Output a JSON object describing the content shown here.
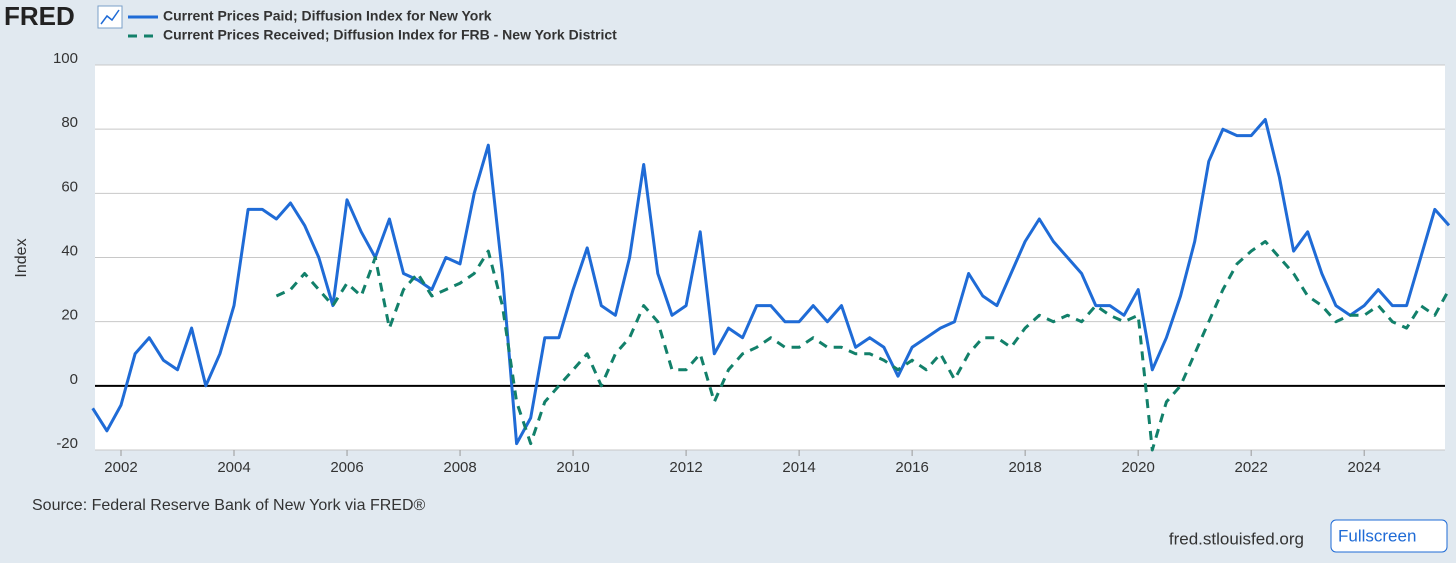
{
  "page": {
    "logo": "FRED",
    "site": "fred.stlouisfed.org",
    "button": "Fullscreen"
  },
  "chart_data": {
    "type": "line",
    "y_label": "Index",
    "source": "Source: Federal Reserve Bank of New York via FRED®",
    "xlim": [
      2001.54,
      2025.43
    ],
    "xticks": [
      2002,
      2004,
      2006,
      2008,
      2010,
      2012,
      2014,
      2016,
      2018,
      2020,
      2022,
      2024
    ],
    "ylim": [
      -20,
      100
    ],
    "yticks": [
      -20,
      0,
      20,
      40,
      60,
      80,
      100
    ],
    "grid": true,
    "series": [
      {
        "name": "Current Prices Paid; Diffusion Index for New York",
        "color": "#1f6bd6",
        "dashed": false,
        "x": [
          2001.5,
          2001.75,
          2002,
          2002.25,
          2002.5,
          2002.75,
          2003,
          2003.25,
          2003.5,
          2003.75,
          2004,
          2004.25,
          2004.5,
          2004.75,
          2005,
          2005.25,
          2005.5,
          2005.75,
          2006,
          2006.25,
          2006.5,
          2006.75,
          2007,
          2007.25,
          2007.5,
          2007.75,
          2008,
          2008.25,
          2008.5,
          2008.75,
          2009,
          2009.25,
          2009.5,
          2009.75,
          2010,
          2010.25,
          2010.5,
          2010.75,
          2011,
          2011.25,
          2011.5,
          2011.75,
          2012,
          2012.25,
          2012.5,
          2012.75,
          2013,
          2013.25,
          2013.5,
          2013.75,
          2014,
          2014.25,
          2014.5,
          2014.75,
          2015,
          2015.25,
          2015.5,
          2015.75,
          2016,
          2016.25,
          2016.5,
          2016.75,
          2017,
          2017.25,
          2017.5,
          2017.75,
          2018,
          2018.25,
          2018.5,
          2018.75,
          2019,
          2019.25,
          2019.5,
          2019.75,
          2020,
          2020.25,
          2020.5,
          2020.75,
          2021,
          2021.25,
          2021.5,
          2021.75,
          2022,
          2022.25,
          2022.5,
          2022.75,
          2023,
          2023.25,
          2023.5,
          2023.75,
          2024,
          2024.25,
          2024.5,
          2024.75,
          2025,
          2025.25,
          2025.5
        ],
        "values": [
          -7,
          -14,
          -6,
          10,
          15,
          8,
          5,
          18,
          0,
          10,
          25,
          55,
          55,
          52,
          57,
          50,
          40,
          25,
          58,
          48,
          40,
          52,
          35,
          33,
          30,
          40,
          38,
          60,
          75,
          35,
          -18,
          -10,
          15,
          15,
          30,
          43,
          25,
          22,
          40,
          69,
          35,
          22,
          25,
          48,
          10,
          18,
          15,
          25,
          25,
          20,
          20,
          25,
          20,
          25,
          12,
          15,
          12,
          3,
          12,
          15,
          18,
          20,
          35,
          28,
          25,
          35,
          45,
          52,
          45,
          40,
          35,
          25,
          25,
          22,
          30,
          5,
          15,
          28,
          45,
          70,
          80,
          78,
          78,
          83,
          65,
          42,
          48,
          35,
          25,
          22,
          25,
          30,
          25,
          25,
          40,
          55,
          50
        ]
      },
      {
        "name": "Current Prices Received; Diffusion Index for FRB - New York District",
        "color": "#12806a",
        "dashed": true,
        "x": [
          2004.75,
          2005,
          2005.25,
          2005.5,
          2005.75,
          2006,
          2006.25,
          2006.5,
          2006.75,
          2007,
          2007.25,
          2007.5,
          2007.75,
          2008,
          2008.25,
          2008.5,
          2008.75,
          2009,
          2009.25,
          2009.5,
          2009.75,
          2010,
          2010.25,
          2010.5,
          2010.75,
          2011,
          2011.25,
          2011.5,
          2011.75,
          2012,
          2012.25,
          2012.5,
          2012.75,
          2013,
          2013.25,
          2013.5,
          2013.75,
          2014,
          2014.25,
          2014.5,
          2014.75,
          2015,
          2015.25,
          2015.5,
          2015.75,
          2016,
          2016.25,
          2016.5,
          2016.75,
          2017,
          2017.25,
          2017.5,
          2017.75,
          2018,
          2018.25,
          2018.5,
          2018.75,
          2019,
          2019.25,
          2019.5,
          2019.75,
          2020,
          2020.25,
          2020.5,
          2020.75,
          2021,
          2021.25,
          2021.5,
          2021.75,
          2022,
          2022.25,
          2022.5,
          2022.75,
          2023,
          2023.25,
          2023.5,
          2023.75,
          2024,
          2024.25,
          2024.5,
          2024.75,
          2025,
          2025.25,
          2025.5
        ],
        "values": [
          28,
          30,
          35,
          30,
          25,
          32,
          28,
          40,
          18,
          30,
          35,
          28,
          30,
          32,
          35,
          42,
          25,
          -5,
          -18,
          -5,
          0,
          5,
          10,
          0,
          10,
          15,
          25,
          20,
          5,
          5,
          10,
          -5,
          5,
          10,
          12,
          15,
          12,
          12,
          15,
          12,
          12,
          10,
          10,
          8,
          5,
          8,
          5,
          10,
          2,
          10,
          15,
          15,
          12,
          18,
          22,
          20,
          22,
          20,
          25,
          22,
          20,
          22,
          -20,
          -5,
          0,
          10,
          20,
          30,
          38,
          42,
          45,
          40,
          35,
          28,
          25,
          20,
          22,
          22,
          25,
          20,
          18,
          25,
          22,
          30
        ]
      }
    ]
  }
}
